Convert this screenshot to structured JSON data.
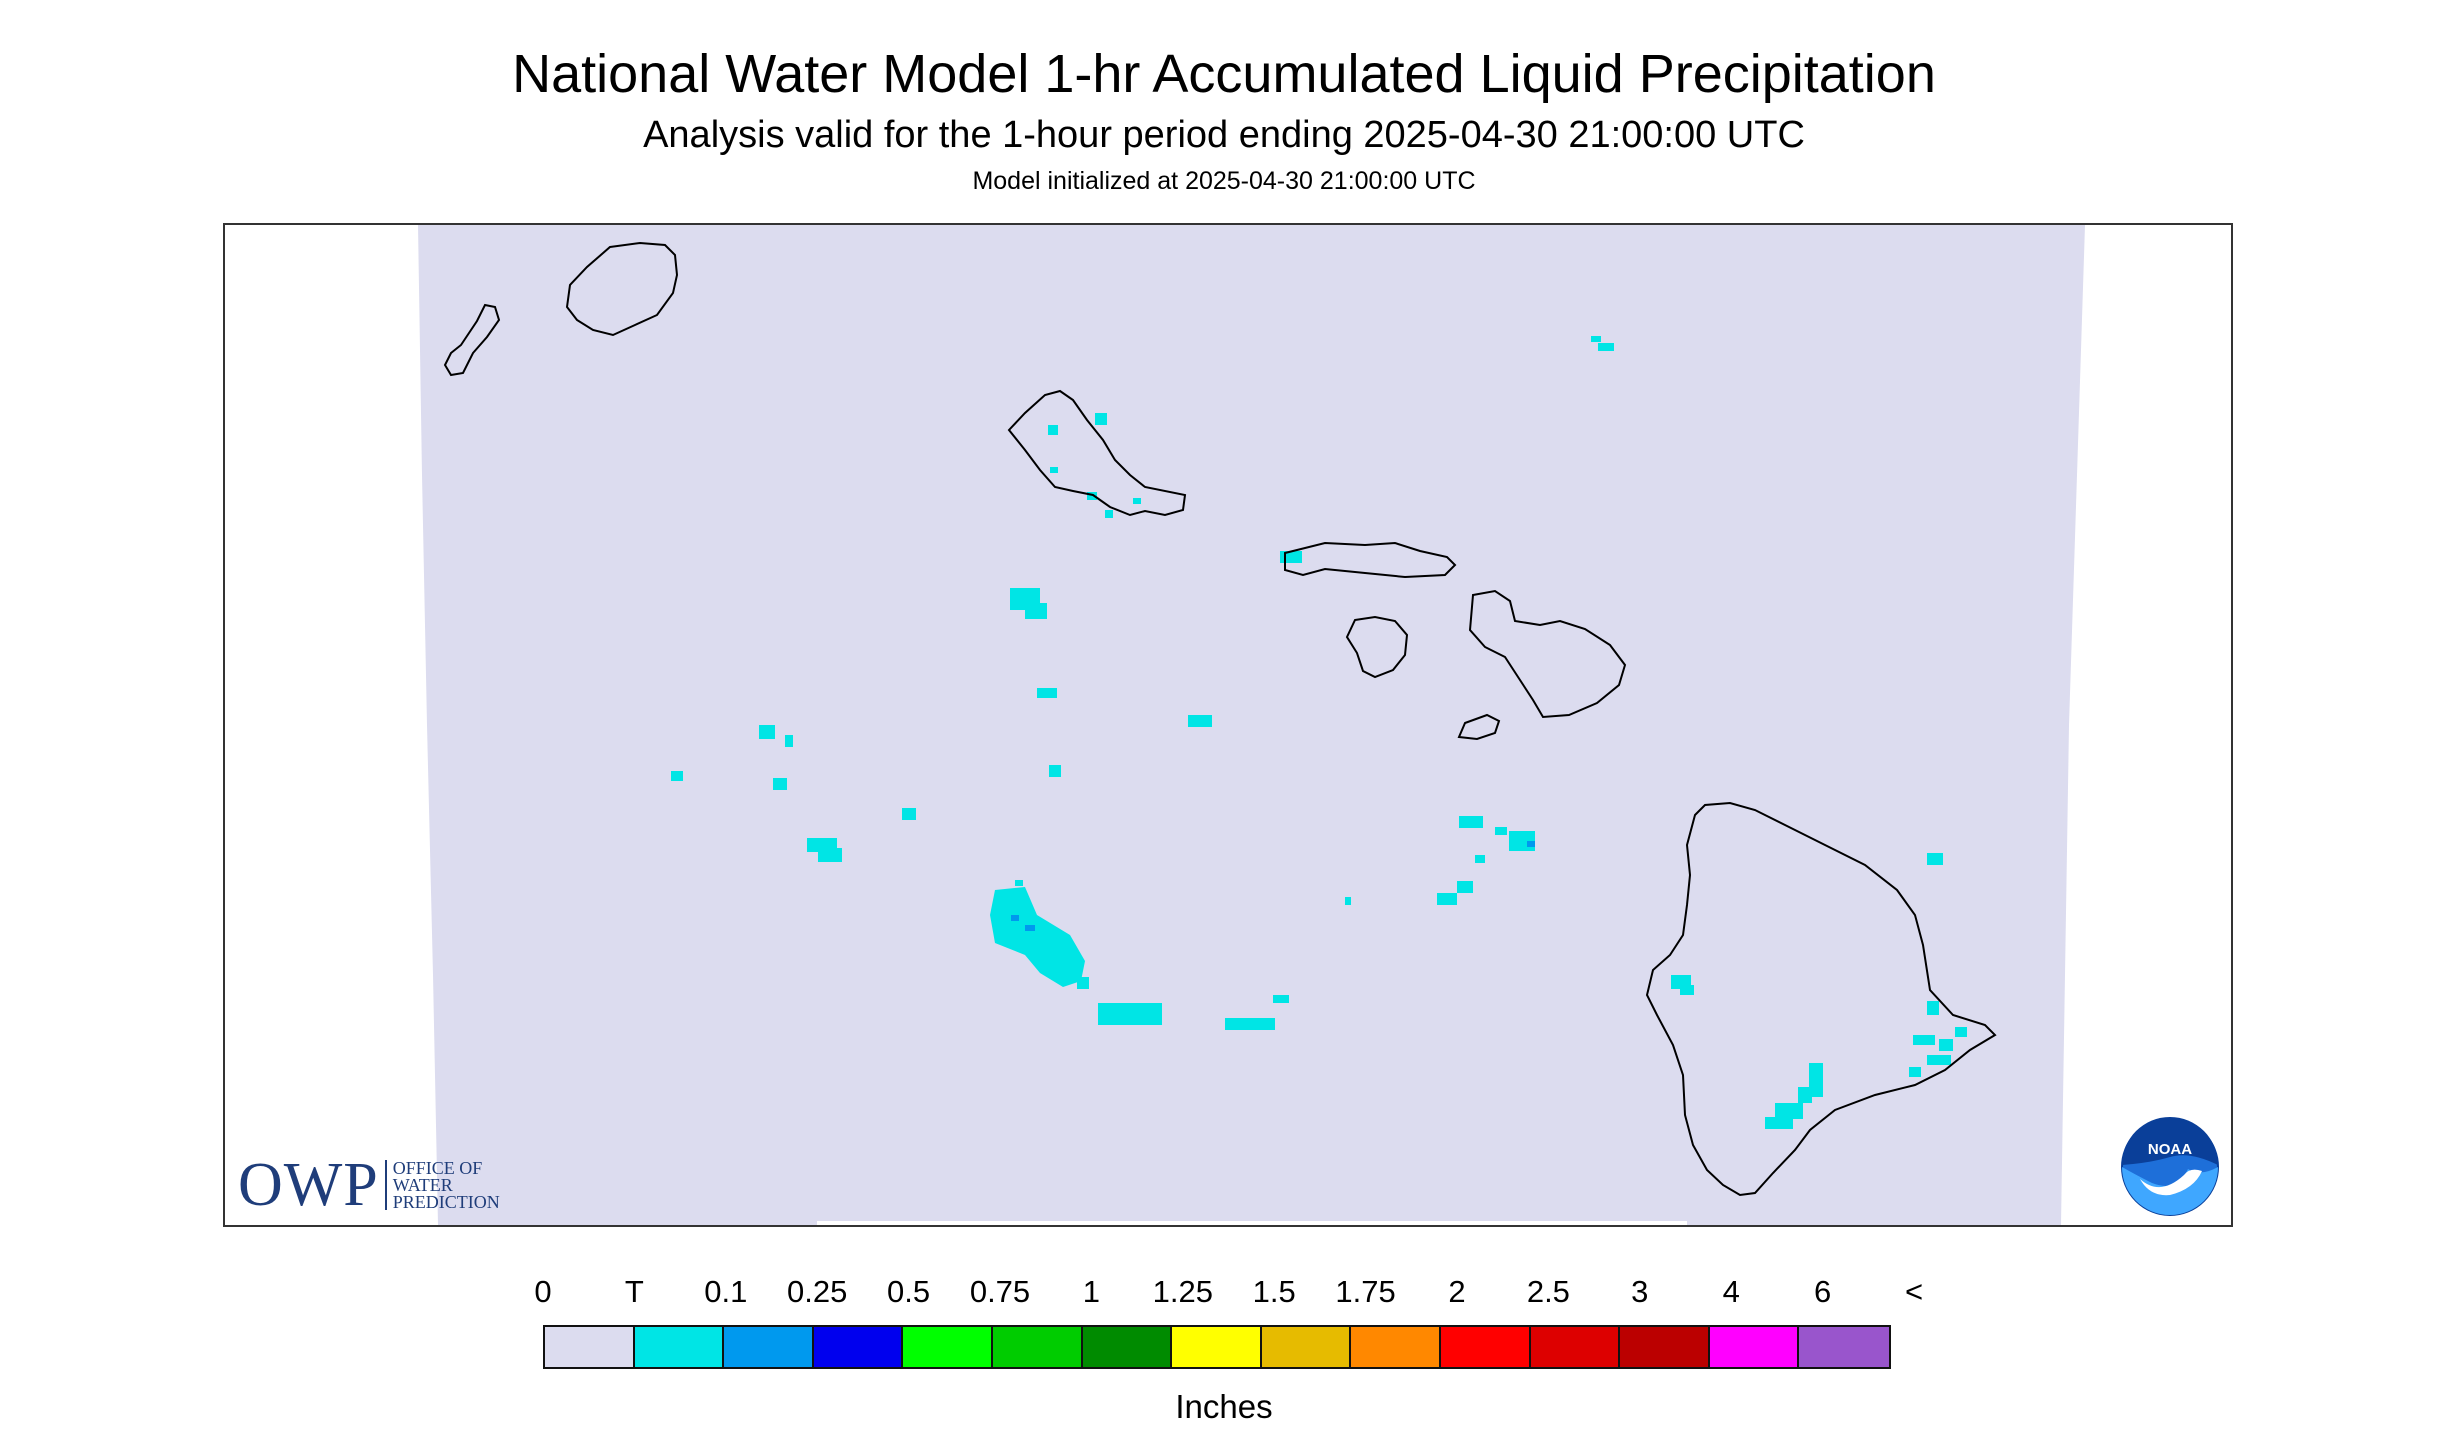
{
  "header": {
    "title": "National Water Model 1-hr Accumulated Liquid Precipitation",
    "subtitle": "Analysis valid for the 1-hour period ending 2025-04-30 21:00:00 UTC",
    "init": "Model initialized at 2025-04-30 21:00:00 UTC"
  },
  "legend": {
    "labels": [
      "0",
      "T",
      "0.1",
      "0.25",
      "0.5",
      "0.75",
      "1",
      "1.25",
      "1.5",
      "1.75",
      "2",
      "2.5",
      "3",
      "4",
      "6",
      "<"
    ],
    "colors": [
      "#dcdcef",
      "#00e5e5",
      "#0099ee",
      "#0000ee",
      "#00ff00",
      "#00cc00",
      "#008b00",
      "#ffff00",
      "#e6bb00",
      "#ff8800",
      "#ff0000",
      "#dd0000",
      "#bb0000",
      "#ff00ff",
      "#9955cc"
    ],
    "units": "Inches"
  },
  "colors": {
    "map_background": "#dcdcef",
    "precip_trace": "#00e5e5",
    "precip_light": "#0099ee",
    "coastline": "#000000"
  },
  "branding": {
    "owp_short": "OWP",
    "owp_line1": "OFFICE OF",
    "owp_line2": "WATER",
    "owp_line3": "PREDICTION",
    "noaa": "NOAA"
  }
}
